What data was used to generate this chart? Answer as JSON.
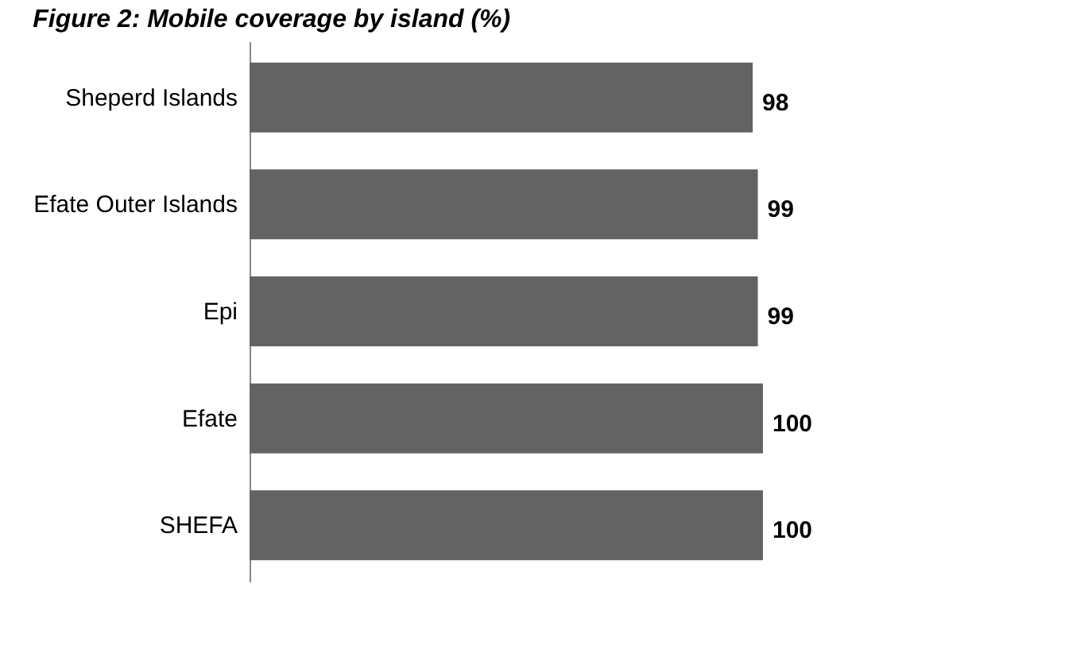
{
  "chart_data": {
    "type": "bar",
    "orientation": "horizontal",
    "title": "Figure 2: Mobile coverage by island (%)",
    "categories": [
      "Sheperd Islands",
      "Efate Outer Islands",
      "Epi",
      "Efate",
      "SHEFA"
    ],
    "values": [
      98,
      99,
      99,
      100,
      100
    ],
    "color": "#636363",
    "data_labels": true
  }
}
